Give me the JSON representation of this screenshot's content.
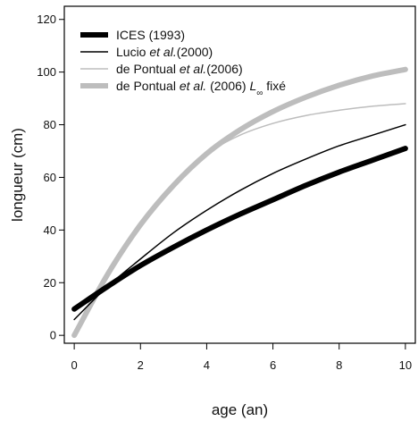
{
  "chart_data": {
    "type": "line",
    "title": "",
    "xlabel": "age (an)",
    "ylabel": "longueur (cm)",
    "xlim": [
      -0.3,
      10.3
    ],
    "ylim": [
      -3,
      125
    ],
    "xticks": [
      0,
      2,
      4,
      6,
      8,
      10
    ],
    "yticks": [
      0,
      20,
      40,
      60,
      80,
      100,
      120
    ],
    "legend_position": "top-left",
    "grid": false,
    "series": [
      {
        "name": "ICES (1993)",
        "color": "#000000",
        "style": "very-thick",
        "x": [
          0,
          1,
          2,
          3,
          4,
          5,
          6,
          7,
          8,
          9,
          10
        ],
        "y": [
          10,
          18.5,
          26.5,
          33.5,
          40,
          46,
          51.5,
          57,
          62,
          66.5,
          71
        ]
      },
      {
        "name": "Lucio et al.(2000)",
        "name_parts": {
          "before": "Lucio ",
          "italic": "et al.",
          "after": "(2000)"
        },
        "color": "#000000",
        "style": "thin",
        "x": [
          0,
          1,
          2,
          3,
          4,
          5,
          6,
          7,
          8,
          9,
          10
        ],
        "y": [
          6,
          18.5,
          29,
          39,
          47.5,
          55,
          61.5,
          67,
          72,
          76,
          80
        ]
      },
      {
        "name": "de Pontual et al.(2006)",
        "name_parts": {
          "before": "de Pontual ",
          "italic": "et al.",
          "after": "(2006)"
        },
        "color": "#bdbdbd",
        "style": "thin",
        "x": [
          0,
          1,
          2,
          3,
          4,
          5,
          6,
          7,
          8,
          9,
          10
        ],
        "y": [
          0,
          24,
          43,
          58,
          69,
          76,
          80.5,
          83.5,
          85.5,
          87,
          88
        ]
      },
      {
        "name": "de Pontual et al. (2006) L∞ fixé",
        "name_parts": {
          "before": "de Pontual ",
          "italic": "et al.",
          "after": " (2006) ",
          "symbol": "L",
          "subscript": "∞",
          "tail": " fixé"
        },
        "color": "#bdbdbd",
        "style": "very-thick",
        "x": [
          0,
          1,
          2,
          3,
          4,
          5,
          6,
          7,
          8,
          9,
          10
        ],
        "y": [
          0,
          23,
          42,
          57,
          69,
          78,
          85,
          90.5,
          95,
          98.5,
          101
        ]
      }
    ]
  }
}
